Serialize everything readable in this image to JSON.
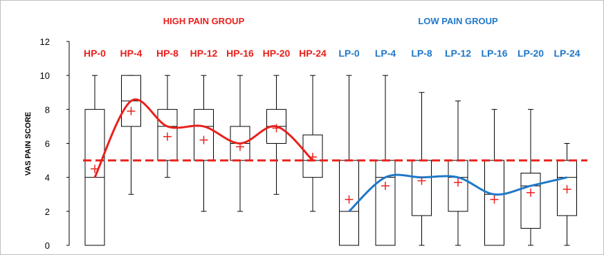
{
  "chart_data": {
    "type": "box",
    "ylabel": "VAS PAIN SCORE",
    "ylim": [
      0,
      12
    ],
    "yticks": [
      "0",
      "2",
      "4",
      "6",
      "8",
      "10",
      "12"
    ],
    "grid": false,
    "reference_line": {
      "y": 5,
      "style": "dashed",
      "color": "#e8201c"
    },
    "groups": [
      {
        "name": "HIGH PAIN GROUP",
        "color": "#e8201c"
      },
      {
        "name": "LOW PAIN GROUP",
        "color": "#1f78c8"
      }
    ],
    "categories": [
      "HP-0",
      "HP-4",
      "HP-8",
      "HP-12",
      "HP-16",
      "HP-20",
      "HP-24",
      "LP-0",
      "LP-4",
      "LP-8",
      "LP-12",
      "LP-16",
      "LP-20",
      "LP-24"
    ],
    "category_groups": [
      0,
      0,
      0,
      0,
      0,
      0,
      0,
      1,
      1,
      1,
      1,
      1,
      1,
      1
    ],
    "boxes": [
      {
        "min": 0,
        "q1": 0,
        "median": 4,
        "q3": 8,
        "max": 10,
        "mean": 4.5
      },
      {
        "min": 3,
        "q1": 7,
        "median": 8.5,
        "q3": 10,
        "max": 10,
        "mean": 7.9
      },
      {
        "min": 4,
        "q1": 5,
        "median": 7,
        "q3": 8,
        "max": 10,
        "mean": 6.4
      },
      {
        "min": 2,
        "q1": 5,
        "median": 7,
        "q3": 8,
        "max": 10,
        "mean": 6.2
      },
      {
        "min": 2,
        "q1": 5,
        "median": 6,
        "q3": 7,
        "max": 10,
        "mean": 5.8
      },
      {
        "min": 3,
        "q1": 6,
        "median": 7,
        "q3": 8,
        "max": 10,
        "mean": 6.9
      },
      {
        "min": 2,
        "q1": 4,
        "median": 5,
        "q3": 6.5,
        "max": 10,
        "mean": 5.2
      },
      {
        "min": 0,
        "q1": 0,
        "median": 2,
        "q3": 5,
        "max": 10,
        "mean": 2.7
      },
      {
        "min": 0,
        "q1": 0,
        "median": 4,
        "q3": 5,
        "max": 10,
        "mean": 3.5
      },
      {
        "min": 0,
        "q1": 1.75,
        "median": 4,
        "q3": 5,
        "max": 9,
        "mean": 3.8
      },
      {
        "min": 0,
        "q1": 2,
        "median": 4,
        "q3": 5,
        "max": 8.5,
        "mean": 3.7
      },
      {
        "min": 0,
        "q1": 0,
        "median": 3,
        "q3": 5,
        "max": 8,
        "mean": 2.7
      },
      {
        "min": 0,
        "q1": 1,
        "median": 3.5,
        "q3": 4.25,
        "max": 8,
        "mean": 3.1
      },
      {
        "min": 0,
        "q1": 1.75,
        "median": 4,
        "q3": 5,
        "max": 6,
        "mean": 3.3
      }
    ],
    "trend_lines": [
      {
        "group": 0,
        "color": "#e8201c",
        "values": [
          4,
          8.5,
          7,
          7,
          6,
          7,
          5
        ]
      },
      {
        "group": 1,
        "color": "#1f78c8",
        "values": [
          2,
          4,
          4,
          4,
          3,
          3.5,
          4
        ]
      }
    ],
    "mean_marker_color": "#e8201c"
  }
}
